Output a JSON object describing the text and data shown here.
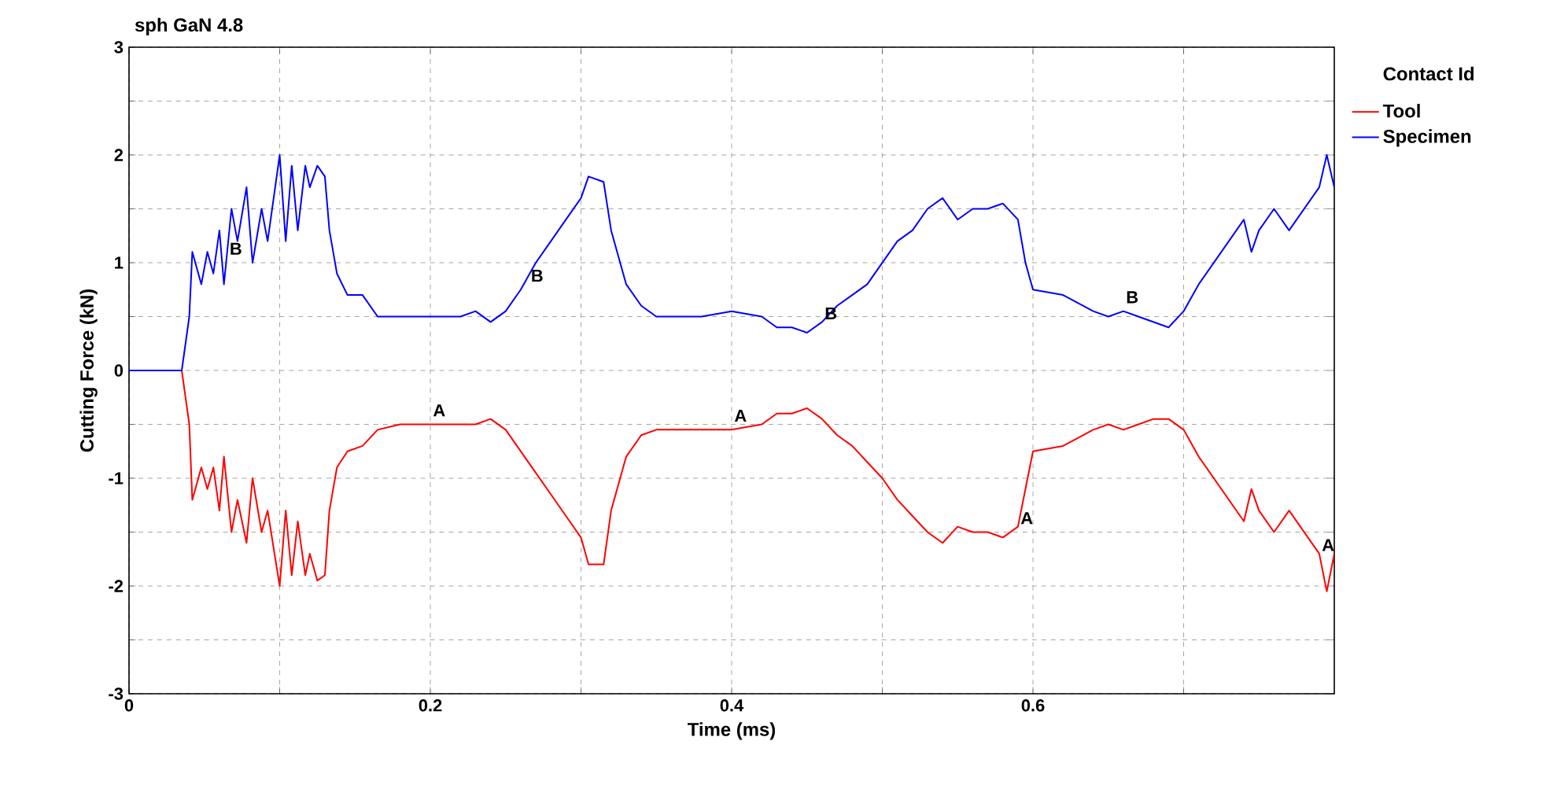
{
  "chart_data": {
    "type": "line",
    "title": "sph GaN 4.8",
    "xlabel": "Time (ms)",
    "ylabel": "Cutting Force (kN)",
    "legend_title": "Contact Id",
    "xlim": [
      0,
      0.8
    ],
    "ylim": [
      -3,
      3
    ],
    "xticks": [
      0,
      {
        "value": 0.1,
        "label": null
      },
      0.2,
      {
        "value": 0.3,
        "label": null
      },
      0.4,
      {
        "value": 0.5,
        "label": null
      },
      0.6,
      {
        "value": 0.7,
        "label": null
      }
    ],
    "yticks": [
      -3,
      {
        "value": -2.5,
        "label": null
      },
      -2,
      {
        "value": -1.5,
        "label": null
      },
      -1,
      {
        "value": -0.5,
        "label": null
      },
      0,
      {
        "value": 0.5,
        "label": null
      },
      1,
      {
        "value": 1.5,
        "label": null
      },
      2,
      {
        "value": 2.5,
        "label": null
      },
      3
    ],
    "grid": true,
    "legend": "top right",
    "line_style": "solid",
    "marker": "none",
    "x": [
      0,
      0.035,
      0.04,
      0.042,
      0.048,
      0.052,
      0.056,
      0.06,
      0.063,
      0.068,
      0.072,
      0.078,
      0.082,
      0.088,
      0.092,
      0.1,
      0.104,
      0.108,
      0.112,
      0.117,
      0.12,
      0.125,
      0.13,
      0.133,
      0.138,
      0.145,
      0.155,
      0.165,
      0.18,
      0.19,
      0.2,
      0.22,
      0.23,
      0.24,
      0.25,
      0.26,
      0.27,
      0.28,
      0.29,
      0.3,
      0.305,
      0.315,
      0.32,
      0.33,
      0.34,
      0.35,
      0.37,
      0.38,
      0.4,
      0.42,
      0.43,
      0.44,
      0.45,
      0.46,
      0.47,
      0.48,
      0.49,
      0.5,
      0.51,
      0.52,
      0.53,
      0.54,
      0.55,
      0.56,
      0.57,
      0.58,
      0.59,
      0.595,
      0.6,
      0.62,
      0.64,
      0.65,
      0.66,
      0.67,
      0.68,
      0.69,
      0.7,
      0.71,
      0.72,
      0.73,
      0.74,
      0.745,
      0.75,
      0.76,
      0.77,
      0.78,
      0.79,
      0.795,
      0.8
    ],
    "series": [
      {
        "name": "Tool",
        "color": "#ff0000",
        "values": [
          0,
          0,
          -0.5,
          -1.2,
          -0.9,
          -1.1,
          -0.9,
          -1.3,
          -0.8,
          -1.5,
          -1.2,
          -1.6,
          -1.0,
          -1.5,
          -1.3,
          -2.0,
          -1.3,
          -1.9,
          -1.4,
          -1.9,
          -1.7,
          -1.95,
          -1.9,
          -1.3,
          -0.9,
          -0.75,
          -0.7,
          -0.55,
          -0.5,
          -0.5,
          -0.5,
          -0.5,
          -0.5,
          -0.45,
          -0.55,
          -0.75,
          -0.95,
          -1.15,
          -1.35,
          -1.55,
          -1.8,
          -1.8,
          -1.3,
          -0.8,
          -0.6,
          -0.55,
          -0.55,
          -0.55,
          -0.55,
          -0.5,
          -0.4,
          -0.4,
          -0.35,
          -0.45,
          -0.6,
          -0.7,
          -0.85,
          -1.0,
          -1.2,
          -1.35,
          -1.5,
          -1.6,
          -1.45,
          -1.5,
          -1.5,
          -1.55,
          -1.45,
          -1.1,
          -0.75,
          -0.7,
          -0.55,
          -0.5,
          -0.55,
          -0.5,
          -0.45,
          -0.45,
          -0.55,
          -0.8,
          -1.0,
          -1.2,
          -1.4,
          -1.1,
          -1.3,
          -1.5,
          -1.3,
          -1.5,
          -1.7,
          -2.05,
          -1.7
        ]
      },
      {
        "name": "Specimen",
        "color": "#0000ff",
        "values": [
          0,
          0,
          0.5,
          1.1,
          0.8,
          1.1,
          0.9,
          1.3,
          0.8,
          1.5,
          1.2,
          1.7,
          1.0,
          1.5,
          1.2,
          2.0,
          1.2,
          1.9,
          1.3,
          1.9,
          1.7,
          1.9,
          1.8,
          1.3,
          0.9,
          0.7,
          0.7,
          0.5,
          0.5,
          0.5,
          0.5,
          0.5,
          0.55,
          0.45,
          0.55,
          0.75,
          1.0,
          1.2,
          1.4,
          1.6,
          1.8,
          1.75,
          1.3,
          0.8,
          0.6,
          0.5,
          0.5,
          0.5,
          0.55,
          0.5,
          0.4,
          0.4,
          0.35,
          0.45,
          0.6,
          0.7,
          0.8,
          1.0,
          1.2,
          1.3,
          1.5,
          1.6,
          1.4,
          1.5,
          1.5,
          1.55,
          1.4,
          1.0,
          0.75,
          0.7,
          0.55,
          0.5,
          0.55,
          0.5,
          0.45,
          0.4,
          0.55,
          0.8,
          1.0,
          1.2,
          1.4,
          1.1,
          1.3,
          1.5,
          1.3,
          1.5,
          1.7,
          2.0,
          1.7
        ]
      }
    ],
    "annotations": [
      {
        "text": "A",
        "x": 0.2,
        "y": -0.45
      },
      {
        "text": "A",
        "x": 0.4,
        "y": -0.5
      },
      {
        "text": "A",
        "x": 0.59,
        "y": -1.45
      },
      {
        "text": "A",
        "x": 0.79,
        "y": -1.7
      },
      {
        "text": "B",
        "x": 0.065,
        "y": 1.05
      },
      {
        "text": "B",
        "x": 0.265,
        "y": 0.8
      },
      {
        "text": "B",
        "x": 0.46,
        "y": 0.45
      },
      {
        "text": "B",
        "x": 0.66,
        "y": 0.6
      }
    ]
  }
}
